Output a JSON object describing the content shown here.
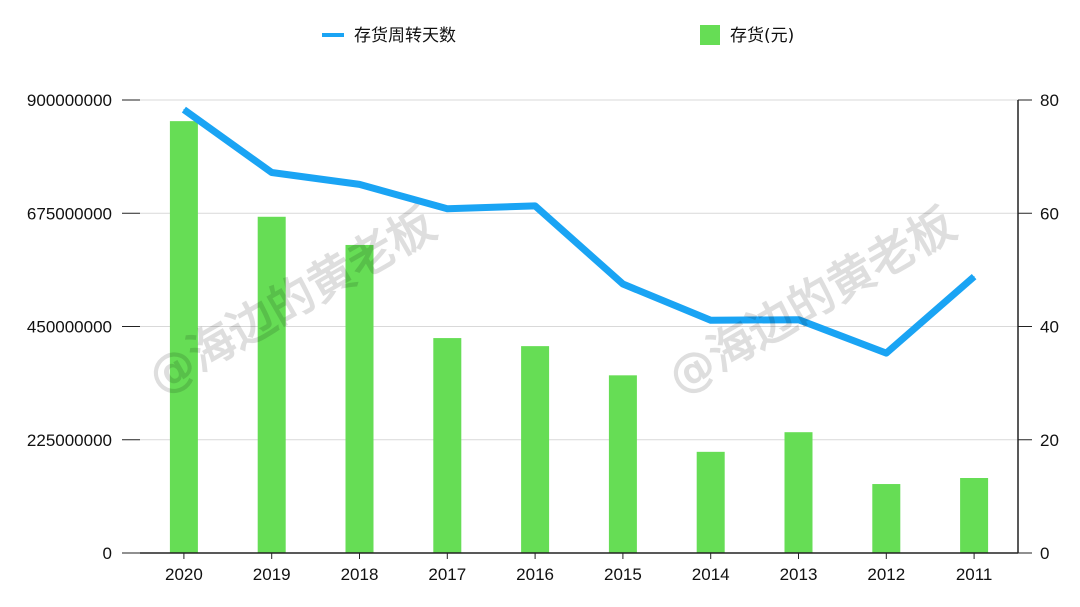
{
  "watermark": "@海边的黄老板",
  "colors": {
    "bar": "#66dd55",
    "line": "#1aa4f4",
    "grid": "#d9d9d9",
    "axis": "#222222"
  },
  "chart_data": {
    "type": "bar",
    "categories": [
      "2020",
      "2019",
      "2018",
      "2017",
      "2016",
      "2015",
      "2014",
      "2013",
      "2012",
      "2011"
    ],
    "series": [
      {
        "name": "存货(元)",
        "type": "bar",
        "axis": "left",
        "values": [
          858000000,
          668000000,
          612000000,
          427000000,
          411000000,
          353000000,
          201000000,
          240000000,
          137000000,
          149000000
        ]
      },
      {
        "name": "存货周转天数",
        "type": "line",
        "axis": "right",
        "values": [
          78.3,
          67.2,
          65.1,
          60.8,
          61.3,
          47.5,
          41.1,
          41.2,
          35.3,
          48.8
        ]
      }
    ],
    "y_left": {
      "min": 0,
      "max": 900000000,
      "ticks": [
        "0",
        "225000000",
        "450000000",
        "675000000",
        "900000000"
      ]
    },
    "y_right": {
      "min": 0,
      "max": 80,
      "ticks": [
        "0",
        "20",
        "40",
        "60",
        "80"
      ]
    },
    "grid": true,
    "legend_position": "top-center"
  }
}
